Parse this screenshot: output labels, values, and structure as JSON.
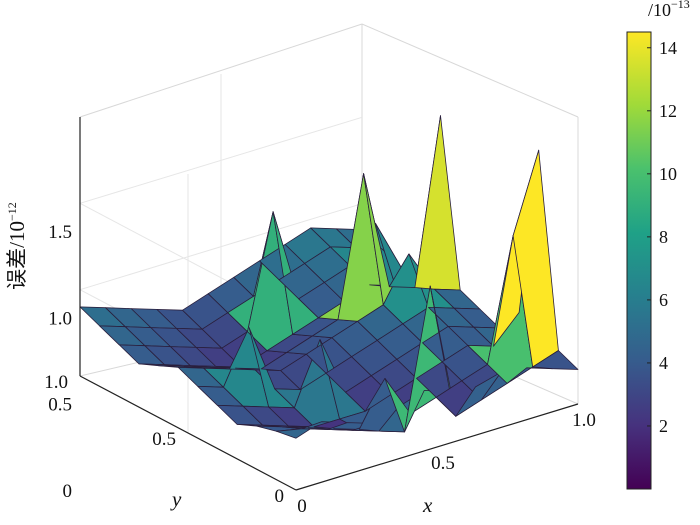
{
  "chart_data": {
    "type": "surface",
    "title": "",
    "x": {
      "label": "x",
      "range": [
        0,
        1
      ],
      "ticks": [
        0,
        0.5,
        1.0
      ],
      "tick_labels": [
        "0",
        "0.5",
        "1.0"
      ]
    },
    "y": {
      "label": "y",
      "range": [
        0,
        1
      ],
      "ticks": [
        0,
        0.5,
        1.0
      ],
      "tick_labels": [
        "0",
        "0.5",
        "1.0"
      ]
    },
    "z": {
      "label": "误差",
      "unit_prefix": "/10",
      "unit_exponent": "−12",
      "range": [
        0,
        1.5
      ],
      "ticks": [
        0,
        0.5,
        1.0,
        1.5
      ],
      "tick_labels": [
        "0",
        "0.5",
        "1.0",
        "1.5"
      ]
    },
    "colorbar": {
      "unit_prefix": "/10",
      "unit_exponent": "−13",
      "range": [
        0,
        14.5
      ],
      "ticks": [
        2,
        4,
        6,
        8,
        10,
        12,
        14
      ],
      "tick_labels": [
        "2",
        "4",
        "6",
        "8",
        "10",
        "12",
        "14"
      ],
      "colormap": "viridis"
    },
    "grid": true,
    "grid_size": 12,
    "z_values": [
      [
        0.3,
        0.35,
        0.3,
        0.25,
        0.3,
        0.35,
        0.3,
        0.28,
        0.32,
        0.3,
        0.25,
        0.2
      ],
      [
        0.28,
        0.25,
        0.2,
        0.15,
        0.1,
        0.05,
        0.85,
        0.05,
        0.1,
        0.15,
        0.2,
        0.25
      ],
      [
        0.25,
        0.2,
        0.15,
        0.1,
        0.05,
        0.3,
        0.05,
        0.1,
        0.15,
        0.2,
        0.9,
        1.35
      ],
      [
        0.2,
        0.15,
        0.1,
        0.05,
        0.05,
        0.05,
        0.1,
        0.15,
        0.2,
        0.25,
        0.2,
        0.35
      ],
      [
        0.25,
        0.2,
        0.15,
        0.1,
        0.45,
        0.1,
        0.15,
        0.2,
        0.25,
        0.3,
        0.25,
        0.2
      ],
      [
        0.3,
        0.25,
        0.55,
        0.15,
        0.1,
        0.15,
        0.2,
        0.25,
        0.3,
        0.35,
        0.3,
        0.25
      ],
      [
        0.35,
        0.3,
        0.25,
        0.2,
        0.15,
        0.2,
        0.25,
        0.3,
        0.35,
        0.6,
        0.35,
        0.3
      ],
      [
        0.3,
        0.25,
        0.2,
        0.15,
        0.1,
        0.15,
        0.2,
        0.25,
        1.05,
        0.35,
        0.3,
        1.25
      ],
      [
        0.25,
        0.2,
        0.15,
        0.1,
        0.05,
        0.1,
        0.15,
        0.2,
        0.25,
        0.3,
        0.25,
        0.2
      ],
      [
        0.3,
        0.25,
        0.2,
        0.15,
        0.1,
        0.15,
        0.8,
        0.25,
        0.3,
        0.35,
        0.55,
        0.25
      ],
      [
        0.35,
        0.3,
        0.25,
        0.2,
        0.15,
        0.2,
        0.25,
        0.3,
        0.35,
        0.4,
        0.35,
        0.3
      ],
      [
        0.4,
        0.35,
        0.3,
        0.25,
        0.2,
        0.25,
        0.3,
        0.35,
        0.4,
        0.45,
        0.4,
        0.35
      ]
    ]
  }
}
